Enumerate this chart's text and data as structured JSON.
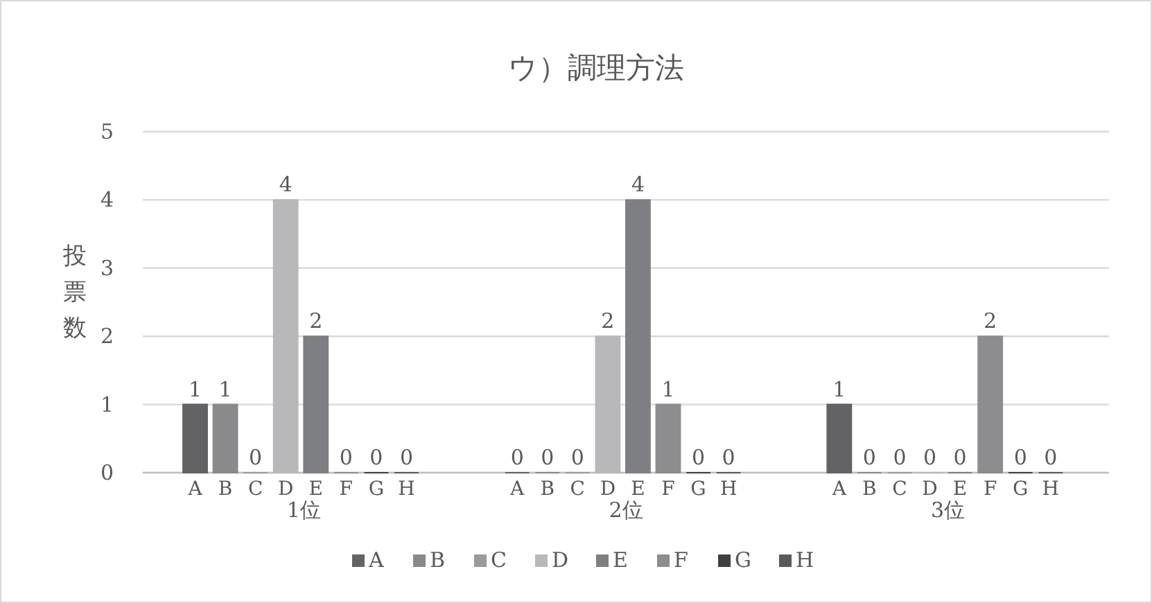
{
  "chart_data": {
    "type": "bar",
    "title": "ウ）調理方法",
    "ylabel": "投票数",
    "categories": [
      "1位",
      "2位",
      "3位"
    ],
    "series": [
      {
        "name": "A",
        "color": "#636366",
        "values": [
          1,
          0,
          1
        ]
      },
      {
        "name": "B",
        "color": "#8a8a8c",
        "values": [
          1,
          0,
          0
        ]
      },
      {
        "name": "C",
        "color": "#9a9a9c",
        "values": [
          0,
          0,
          0
        ]
      },
      {
        "name": "D",
        "color": "#b8b8ba",
        "values": [
          4,
          2,
          0
        ]
      },
      {
        "name": "E",
        "color": "#7e7f82",
        "values": [
          2,
          4,
          0
        ]
      },
      {
        "name": "F",
        "color": "#8d8d8f",
        "values": [
          0,
          1,
          2
        ]
      },
      {
        "name": "G",
        "color": "#404042",
        "values": [
          0,
          0,
          0
        ]
      },
      {
        "name": "H",
        "color": "#5a5a5c",
        "values": [
          0,
          0,
          0
        ]
      }
    ],
    "ylim": [
      0,
      5
    ],
    "yticks": [
      0,
      1,
      2,
      3,
      4,
      5
    ],
    "grid": "y",
    "data_labels": true,
    "legend": "bottom"
  }
}
